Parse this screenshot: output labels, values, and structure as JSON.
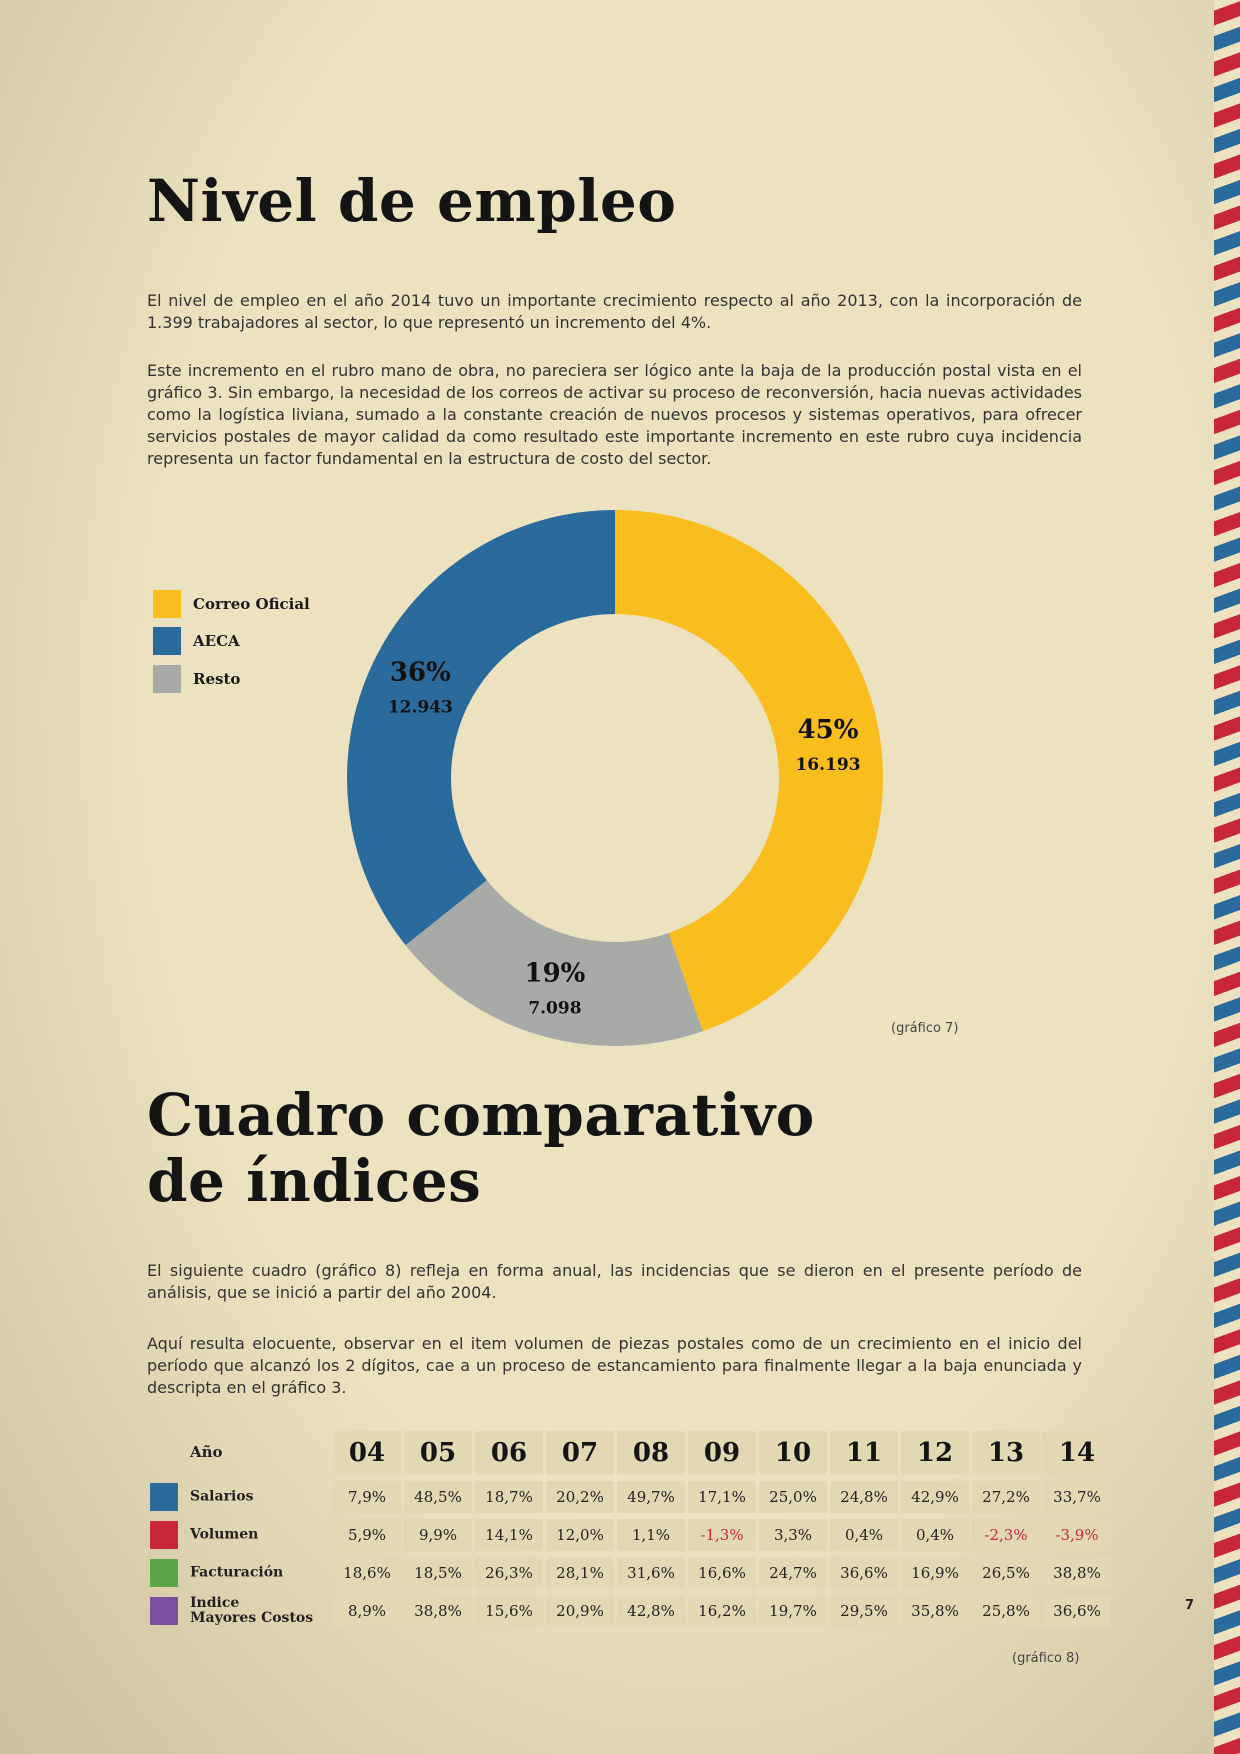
{
  "section1": {
    "title": "Nivel de empleo",
    "paragraphs": [
      "El nivel de empleo en el año 2014 tuvo un importante crecimiento respecto al año 2013, con la incorporación de 1.399 trabajadores al sector, lo que representó un incremento del 4%.",
      "Este incremento en el rubro mano de obra, no pareciera ser lógico ante la baja de la producción postal vista en el gráfico 3. Sin embargo, la necesidad de los correos de activar su proceso de reconversión, hacia nuevas actividades como la logística liviana, sumado a la constante creación de nuevos procesos y sistemas operativos, para ofrecer servicios postales de mayor calidad da como resultado este importante incremento en este rubro cuya incidencia representa un factor fundamental en la estructura de costo del sector."
    ],
    "caption": "(gráfico 7)"
  },
  "chart_data": {
    "type": "pie",
    "style": "donut",
    "legend_position": "left",
    "slices": [
      {
        "name": "Correo Oficial",
        "percent": 45,
        "percent_label": "45%",
        "value_label": "16.193",
        "value": 16193,
        "color": "#f9bd1d"
      },
      {
        "name": "Resto",
        "percent": 19,
        "percent_label": "19%",
        "value_label": "7.098",
        "value": 7098,
        "color": "#a8aaa8"
      },
      {
        "name": "AECA",
        "percent": 36,
        "percent_label": "36%",
        "value_label": "12.943",
        "value": 12943,
        "color": "#2a6a9c"
      }
    ]
  },
  "legend": [
    {
      "label": "Correo Oficial",
      "color": "#f9bd1d"
    },
    {
      "label": "AECA",
      "color": "#2a6a9c"
    },
    {
      "label": "Resto",
      "color": "#a8aaa8"
    }
  ],
  "section2": {
    "title_line1": "Cuadro comparativo",
    "title_line2": "de índices",
    "paragraphs": [
      "El siguiente cuadro (gráfico 8) refleja en forma anual, las incidencias que se dieron en el presente período de análisis, que se inició a partir del año 2004.",
      "Aquí resulta elocuente, observar en el item volumen de piezas postales como de un crecimiento en el inicio del período que alcanzó los 2 dígitos, cae a un proceso de estancamiento para finalmente llegar a la baja enunciada y descripta en el gráfico 3."
    ],
    "caption": "(gráfico 8)"
  },
  "table": {
    "year_header": "Año",
    "years": [
      "04",
      "05",
      "06",
      "07",
      "08",
      "09",
      "10",
      "11",
      "12",
      "13",
      "14"
    ],
    "rows": [
      {
        "label_line1": "Salarios",
        "label_line2": "",
        "color": "#2a6a9c",
        "values": [
          "7,9%",
          "48,5%",
          "18,7%",
          "20,2%",
          "49,7%",
          "17,1%",
          "25,0%",
          "24,8%",
          "42,9%",
          "27,2%",
          "33,7%"
        ]
      },
      {
        "label_line1": "Volumen",
        "label_line2": "",
        "color": "#c8273a",
        "values": [
          "5,9%",
          "9,9%",
          "14,1%",
          "12,0%",
          "1,1%",
          "-1,3%",
          "3,3%",
          "0,4%",
          "0,4%",
          "-2,3%",
          "-3,9%"
        ]
      },
      {
        "label_line1": "Facturación",
        "label_line2": "",
        "color": "#5aa646",
        "values": [
          "18,6%",
          "18,5%",
          "26,3%",
          "28,1%",
          "31,6%",
          "16,6%",
          "24,7%",
          "36,6%",
          "16,9%",
          "26,5%",
          "38,8%"
        ]
      },
      {
        "label_line1": "Indice",
        "label_line2": "Mayores Costos",
        "color": "#7b4ea0",
        "values": [
          "8,9%",
          "38,8%",
          "15,6%",
          "20,9%",
          "42,8%",
          "16,2%",
          "19,7%",
          "29,5%",
          "35,8%",
          "25,8%",
          "36,6%"
        ]
      }
    ],
    "negative_color": "#c8273a"
  },
  "page_number": "7"
}
